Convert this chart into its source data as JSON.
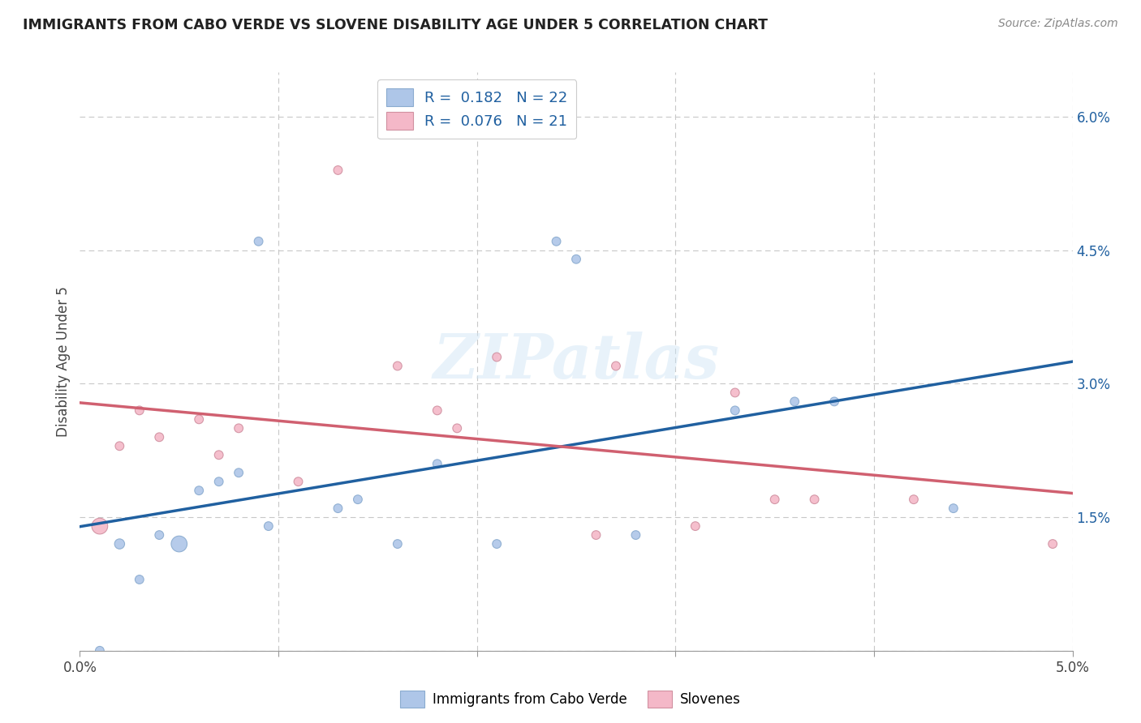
{
  "title": "IMMIGRANTS FROM CABO VERDE VS SLOVENE DISABILITY AGE UNDER 5 CORRELATION CHART",
  "source": "Source: ZipAtlas.com",
  "ylabel": "Disability Age Under 5",
  "xlim": [
    0.0,
    0.05
  ],
  "ylim": [
    0.0,
    0.065
  ],
  "xtick_positions": [
    0.0,
    0.01,
    0.02,
    0.03,
    0.04,
    0.05
  ],
  "xtick_labels": [
    "0.0%",
    "",
    "",
    "",
    "",
    "5.0%"
  ],
  "ytick_positions": [
    0.0,
    0.015,
    0.03,
    0.045,
    0.06
  ],
  "ytick_labels_right": [
    "",
    "1.5%",
    "3.0%",
    "4.5%",
    "6.0%"
  ],
  "cabo_verde_R": "0.182",
  "cabo_verde_N": "22",
  "slovene_R": "0.076",
  "slovene_N": "21",
  "cabo_verde_color": "#aec6e8",
  "slovene_color": "#f4b8c8",
  "cabo_verde_line_color": "#2060a0",
  "slovene_line_color": "#d06070",
  "legend_text_color": "#2060a0",
  "cabo_verde_x": [
    0.001,
    0.002,
    0.003,
    0.004,
    0.005,
    0.006,
    0.007,
    0.008,
    0.009,
    0.0095,
    0.013,
    0.014,
    0.016,
    0.018,
    0.021,
    0.024,
    0.025,
    0.028,
    0.033,
    0.036,
    0.038,
    0.044
  ],
  "cabo_verde_y": [
    0.0,
    0.012,
    0.008,
    0.013,
    0.012,
    0.018,
    0.019,
    0.02,
    0.046,
    0.014,
    0.016,
    0.017,
    0.012,
    0.021,
    0.012,
    0.046,
    0.044,
    0.013,
    0.027,
    0.028,
    0.028,
    0.016
  ],
  "cabo_verde_size": [
    60,
    80,
    60,
    60,
    200,
    60,
    60,
    60,
    60,
    60,
    60,
    60,
    60,
    60,
    60,
    60,
    60,
    60,
    60,
    60,
    60,
    60
  ],
  "slovene_x": [
    0.001,
    0.002,
    0.003,
    0.004,
    0.006,
    0.007,
    0.008,
    0.011,
    0.013,
    0.016,
    0.018,
    0.019,
    0.021,
    0.026,
    0.027,
    0.031,
    0.033,
    0.035,
    0.037,
    0.042,
    0.049
  ],
  "slovene_y": [
    0.014,
    0.023,
    0.027,
    0.024,
    0.026,
    0.022,
    0.025,
    0.019,
    0.054,
    0.032,
    0.027,
    0.025,
    0.033,
    0.013,
    0.032,
    0.014,
    0.029,
    0.017,
    0.017,
    0.017,
    0.012
  ],
  "slovene_size": [
    200,
    60,
    60,
    60,
    60,
    60,
    60,
    60,
    60,
    60,
    60,
    60,
    60,
    60,
    60,
    60,
    60,
    60,
    60,
    60,
    60
  ],
  "watermark": "ZIPatlas",
  "background_color": "#ffffff",
  "grid_color": "#c8c8c8"
}
